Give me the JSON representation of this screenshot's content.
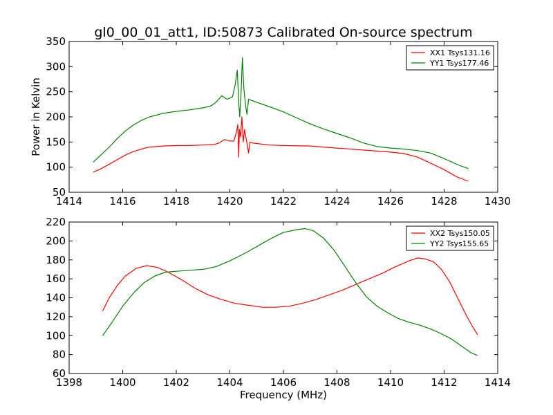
{
  "figure": {
    "title": "gl0_00_01_att1, ID:50873 Calibrated On-source spectrum"
  },
  "chart_data": [
    {
      "type": "line",
      "title": "gl0_00_01_att1, ID:50873 Calibrated On-source spectrum",
      "xlabel": "",
      "ylabel": "Power in Kelvin",
      "xlim": [
        1414,
        1430
      ],
      "ylim": [
        50,
        350
      ],
      "xticks": [
        1414,
        1416,
        1418,
        1420,
        1422,
        1424,
        1426,
        1428,
        1430
      ],
      "yticks": [
        50,
        100,
        150,
        200,
        250,
        300,
        350
      ],
      "grid": false,
      "legend_position": "top-right",
      "series": [
        {
          "name": "XX1 Tsys131.16",
          "color": "#ff0000",
          "x": [
            1414.9,
            1415.2,
            1415.5,
            1415.8,
            1416.1,
            1416.4,
            1416.7,
            1417.0,
            1417.5,
            1418.0,
            1418.5,
            1419.0,
            1419.4,
            1419.6,
            1419.8,
            1420.0,
            1420.15,
            1420.25,
            1420.3,
            1420.33,
            1420.36,
            1420.4,
            1420.45,
            1420.5,
            1420.55,
            1420.6,
            1420.65,
            1420.7,
            1420.75,
            1420.85,
            1421.0,
            1421.5,
            1422.0,
            1423.0,
            1424.0,
            1425.0,
            1426.0,
            1426.5,
            1427.0,
            1427.5,
            1428.0,
            1428.5,
            1428.9
          ],
          "y": [
            90,
            97,
            106,
            115,
            124,
            131,
            136,
            140,
            142,
            143,
            143,
            144,
            145,
            148,
            155,
            152,
            152,
            170,
            185,
            120,
            175,
            160,
            200,
            150,
            175,
            160,
            145,
            128,
            150,
            148,
            147,
            144,
            143,
            142,
            138,
            134,
            130,
            127,
            120,
            108,
            95,
            80,
            72
          ]
        },
        {
          "name": "YY1 Tsys177.46",
          "color": "#008000",
          "x": [
            1414.9,
            1415.2,
            1415.5,
            1415.8,
            1416.1,
            1416.4,
            1416.7,
            1417.0,
            1417.5,
            1418.0,
            1418.5,
            1419.0,
            1419.3,
            1419.5,
            1419.7,
            1419.9,
            1420.1,
            1420.2,
            1420.28,
            1420.33,
            1420.37,
            1420.42,
            1420.47,
            1420.52,
            1420.58,
            1420.64,
            1420.7,
            1420.8,
            1421.0,
            1421.5,
            1422.0,
            1422.5,
            1423.0,
            1423.5,
            1424.0,
            1424.5,
            1425.0,
            1425.5,
            1426.0,
            1426.5,
            1427.0,
            1427.5,
            1428.0,
            1428.5,
            1428.9
          ],
          "y": [
            110,
            125,
            140,
            157,
            172,
            184,
            193,
            200,
            207,
            211,
            214,
            218,
            222,
            230,
            242,
            235,
            240,
            265,
            293,
            230,
            200,
            250,
            318,
            260,
            225,
            205,
            235,
            233,
            229,
            220,
            210,
            198,
            186,
            176,
            167,
            158,
            148,
            141,
            138,
            136,
            133,
            128,
            117,
            105,
            97
          ]
        }
      ]
    },
    {
      "type": "line",
      "title": "",
      "xlabel": "Frequency (MHz)",
      "ylabel": "",
      "xlim": [
        1398,
        1414
      ],
      "ylim": [
        60,
        220
      ],
      "xticks": [
        1398,
        1400,
        1402,
        1404,
        1406,
        1408,
        1410,
        1412,
        1414
      ],
      "yticks": [
        60,
        80,
        100,
        120,
        140,
        160,
        180,
        200,
        220
      ],
      "grid": false,
      "legend_position": "top-right",
      "series": [
        {
          "name": "XX2 Tsys150.05",
          "color": "#ff0000",
          "x": [
            1399.25,
            1399.5,
            1399.8,
            1400.1,
            1400.5,
            1400.9,
            1401.3,
            1401.7,
            1402.2,
            1402.7,
            1403.2,
            1403.7,
            1404.2,
            1404.7,
            1405.2,
            1405.7,
            1406.2,
            1406.7,
            1407.2,
            1407.7,
            1408.2,
            1408.7,
            1409.2,
            1409.7,
            1410.2,
            1410.7,
            1411.0,
            1411.3,
            1411.6,
            1411.9,
            1412.2,
            1412.5,
            1412.8,
            1413.05,
            1413.25
          ],
          "y": [
            126,
            140,
            153,
            163,
            171,
            174,
            172,
            167,
            159,
            150,
            143,
            138,
            134,
            132,
            130,
            130,
            131,
            134,
            138,
            143,
            148,
            154,
            160,
            166,
            173,
            179,
            182,
            181,
            178,
            170,
            157,
            140,
            123,
            110,
            101
          ]
        },
        {
          "name": "YY2 Tsys155.65",
          "color": "#008000",
          "x": [
            1399.25,
            1399.6,
            1400.0,
            1400.4,
            1400.8,
            1401.2,
            1401.6,
            1402.0,
            1402.5,
            1403.0,
            1403.5,
            1404.0,
            1404.5,
            1405.0,
            1405.5,
            1406.0,
            1406.5,
            1406.8,
            1407.1,
            1407.5,
            1407.9,
            1408.3,
            1408.7,
            1409.1,
            1409.5,
            1409.9,
            1410.3,
            1410.7,
            1411.1,
            1411.5,
            1411.9,
            1412.3,
            1412.7,
            1413.0,
            1413.25
          ],
          "y": [
            100,
            114,
            131,
            145,
            156,
            163,
            167,
            168,
            169,
            170,
            173,
            179,
            186,
            194,
            202,
            209,
            212,
            213,
            211,
            203,
            190,
            173,
            156,
            141,
            131,
            124,
            118,
            114,
            111,
            107,
            102,
            96,
            88,
            82,
            79
          ]
        }
      ]
    }
  ]
}
